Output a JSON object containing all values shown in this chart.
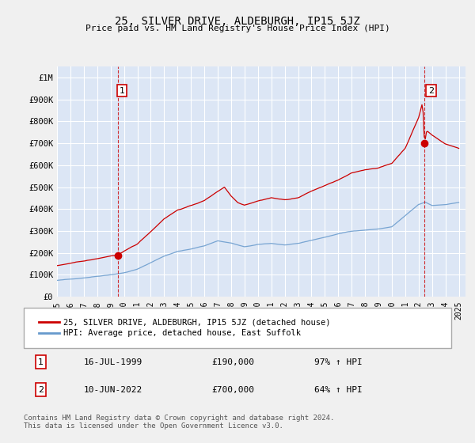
{
  "title": "25, SILVER DRIVE, ALDEBURGH, IP15 5JZ",
  "subtitle": "Price paid vs. HM Land Registry's House Price Index (HPI)",
  "background_color": "#f0f0f0",
  "plot_bg_color": "#dce6f5",
  "grid_color": "#ffffff",
  "ylim": [
    0,
    1050000
  ],
  "xlim_start": 1995.0,
  "xlim_end": 2025.5,
  "red_line_color": "#cc0000",
  "blue_line_color": "#6699cc",
  "dashed_line_color": "#cc0000",
  "sale1_date": 1999.54,
  "sale1_price": 190000,
  "sale1_label": "1",
  "sale2_date": 2022.44,
  "sale2_price": 700000,
  "sale2_label": "2",
  "legend_line1": "25, SILVER DRIVE, ALDEBURGH, IP15 5JZ (detached house)",
  "legend_line2": "HPI: Average price, detached house, East Suffolk",
  "ann1_date": "16-JUL-1999",
  "ann1_price": "£190,000",
  "ann1_hpi": "97% ↑ HPI",
  "ann2_date": "10-JUN-2022",
  "ann2_price": "£700,000",
  "ann2_hpi": "64% ↑ HPI",
  "footer": "Contains HM Land Registry data © Crown copyright and database right 2024.\nThis data is licensed under the Open Government Licence v3.0.",
  "yticks": [
    0,
    100000,
    200000,
    300000,
    400000,
    500000,
    600000,
    700000,
    800000,
    900000,
    1000000
  ],
  "ytick_labels": [
    "£0",
    "£100K",
    "£200K",
    "£300K",
    "£400K",
    "£500K",
    "£600K",
    "£700K",
    "£800K",
    "£900K",
    "£1M"
  ],
  "xticks": [
    1995,
    1996,
    1997,
    1998,
    1999,
    2000,
    2001,
    2002,
    2003,
    2004,
    2005,
    2006,
    2007,
    2008,
    2009,
    2010,
    2011,
    2012,
    2013,
    2014,
    2015,
    2016,
    2017,
    2018,
    2019,
    2020,
    2021,
    2022,
    2023,
    2024,
    2025
  ]
}
